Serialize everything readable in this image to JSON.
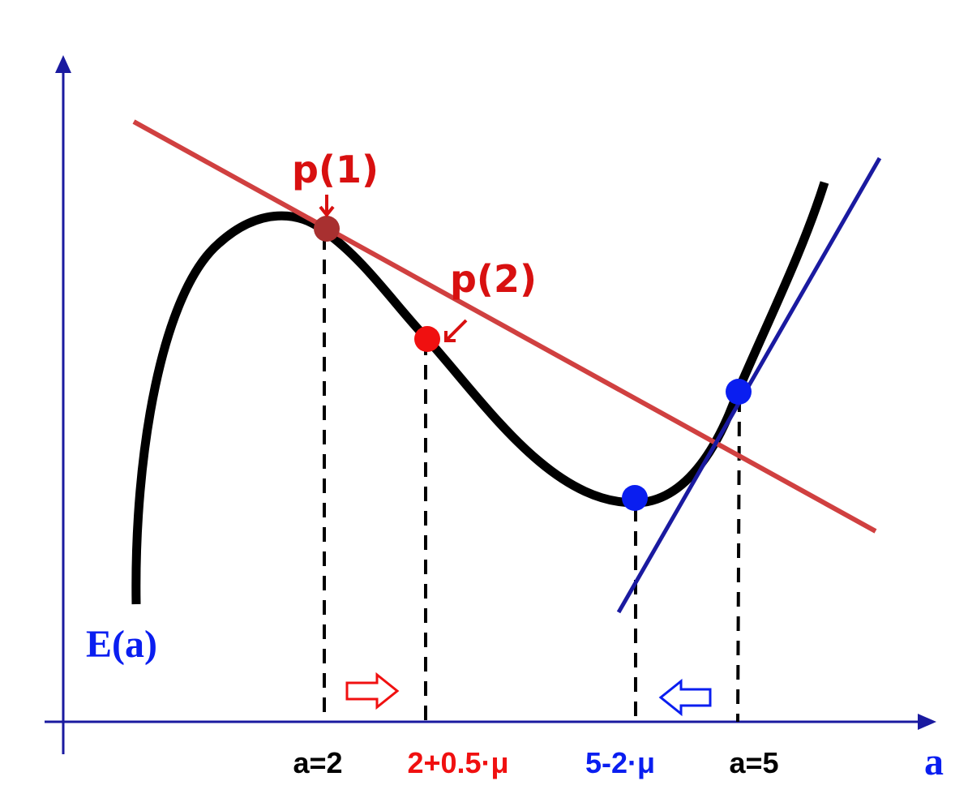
{
  "axis_labels": {
    "y": "E(a)",
    "x": "a"
  },
  "x_labels": [
    "a=2",
    "2+0.5·μ",
    "5-2·μ",
    "a=5"
  ],
  "point_labels": [
    "p(1)",
    "p(2)"
  ]
}
